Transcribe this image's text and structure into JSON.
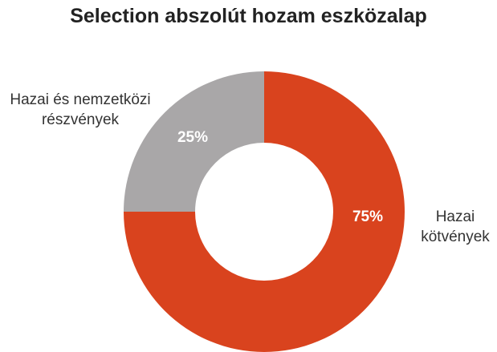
{
  "chart_data": {
    "type": "donut",
    "title": "Selection abszolút hozam eszközalap",
    "categories": [
      "Hazai\nkötvények",
      "Hazai és nemzetközi\nrészvények"
    ],
    "values": [
      75,
      25
    ],
    "value_labels": [
      "75%",
      "25%"
    ],
    "colors": [
      "#d9431e",
      "#a9a7a8"
    ]
  }
}
